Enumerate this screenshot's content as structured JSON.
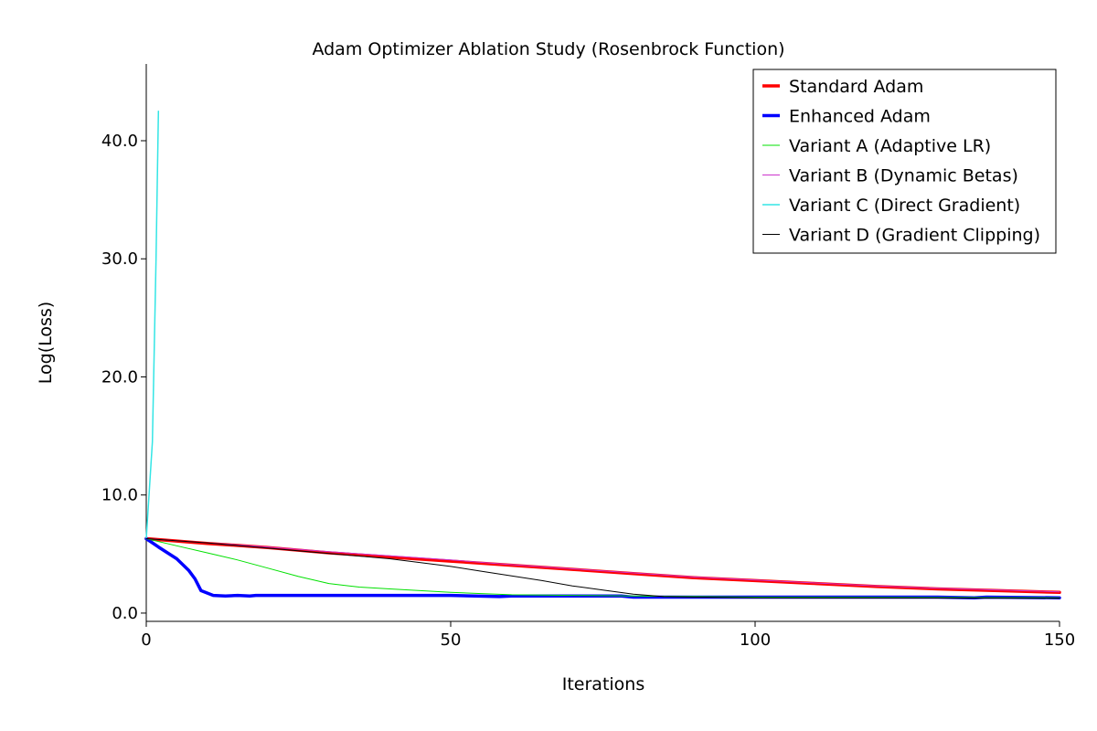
{
  "chart_data": {
    "type": "line",
    "title": "Adam Optimizer Ablation Study (Rosenbrock Function)",
    "xlabel": "Iterations",
    "ylabel": "Log(Loss)",
    "xlim": [
      0,
      150
    ],
    "ylim": [
      -0.7,
      46.5
    ],
    "x_ticks": [
      0,
      50,
      100,
      150
    ],
    "x_tick_labels": [
      "0",
      "50",
      "100",
      "150"
    ],
    "y_ticks": [
      0,
      10,
      20,
      30,
      40
    ],
    "y_tick_labels": [
      "0.0",
      "10.0",
      "20.0",
      "30.0",
      "40.0"
    ],
    "grid": false,
    "legend_position": "top-right",
    "series": [
      {
        "name": "Standard Adam",
        "color": "#ff0000",
        "width": 3.5,
        "x": [
          0,
          10,
          20,
          30,
          40,
          50,
          60,
          70,
          80,
          90,
          100,
          110,
          120,
          130,
          140,
          150
        ],
        "y": [
          6.3,
          5.9,
          5.55,
          5.1,
          4.75,
          4.4,
          4.05,
          3.7,
          3.35,
          3.0,
          2.75,
          2.5,
          2.25,
          2.05,
          1.9,
          1.75
        ]
      },
      {
        "name": "Enhanced Adam",
        "color": "#0000ff",
        "width": 3.5,
        "x": [
          0,
          2,
          5,
          7,
          8,
          9,
          11,
          13,
          15,
          17,
          18,
          20,
          50,
          58,
          60,
          78,
          80,
          100,
          130,
          136,
          138,
          150
        ],
        "y": [
          6.3,
          5.6,
          4.6,
          3.6,
          2.9,
          1.9,
          1.5,
          1.45,
          1.5,
          1.45,
          1.5,
          1.5,
          1.5,
          1.4,
          1.45,
          1.45,
          1.35,
          1.35,
          1.35,
          1.3,
          1.35,
          1.3
        ]
      },
      {
        "name": "Variant A (Adaptive LR)",
        "color": "#00e000",
        "width": 1,
        "x": [
          0,
          5,
          10,
          15,
          20,
          25,
          30,
          35,
          40,
          45,
          50,
          55,
          60,
          70,
          80,
          90,
          100,
          150
        ],
        "y": [
          6.3,
          5.7,
          5.1,
          4.5,
          3.8,
          3.1,
          2.5,
          2.2,
          2.05,
          1.9,
          1.75,
          1.65,
          1.55,
          1.5,
          1.45,
          1.4,
          1.35,
          1.3
        ]
      },
      {
        "name": "Variant B (Dynamic Betas)",
        "color": "#cc33cc",
        "width": 1,
        "x": [
          0,
          10,
          20,
          30,
          40,
          50,
          60,
          70,
          80,
          90,
          100,
          110,
          120,
          130,
          140,
          150
        ],
        "y": [
          6.3,
          5.95,
          5.6,
          5.2,
          4.85,
          4.5,
          4.1,
          3.75,
          3.4,
          3.05,
          2.8,
          2.55,
          2.3,
          2.1,
          1.95,
          1.8
        ]
      },
      {
        "name": "Variant C (Direct Gradient)",
        "color": "#33e5e5",
        "width": 1.5,
        "x": [
          0,
          1,
          1.6,
          2
        ],
        "y": [
          6.3,
          14.5,
          30.0,
          42.5
        ]
      },
      {
        "name": "Variant D (Gradient Clipping)",
        "color": "#000000",
        "width": 1,
        "x": [
          0,
          10,
          20,
          30,
          40,
          50,
          55,
          60,
          65,
          70,
          75,
          80,
          85,
          90,
          100,
          150
        ],
        "y": [
          6.3,
          5.95,
          5.5,
          5.05,
          4.6,
          3.95,
          3.55,
          3.15,
          2.75,
          2.3,
          1.95,
          1.6,
          1.4,
          1.35,
          1.3,
          1.25
        ]
      }
    ]
  }
}
